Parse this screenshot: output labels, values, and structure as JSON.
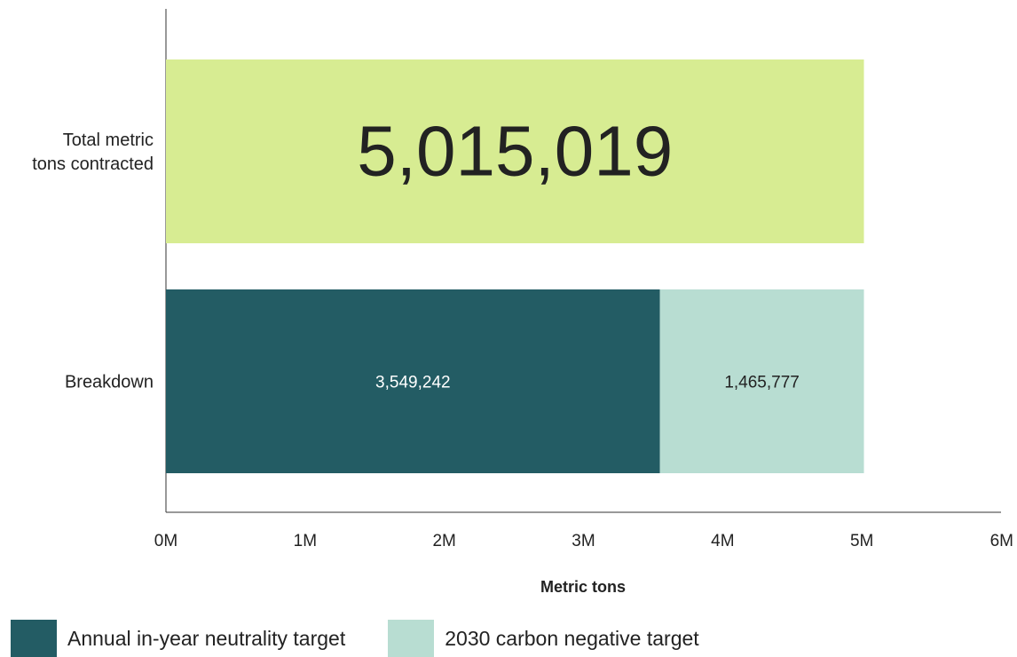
{
  "colors": {
    "total": "#d7ec92",
    "neutrality": "#235c64",
    "negative": "#b8ddd2",
    "axis": "#333333",
    "text": "#222222",
    "label_on_dark": "#ffffff"
  },
  "chart_data": {
    "type": "bar",
    "orientation": "horizontal",
    "stacked": true,
    "title": "",
    "xlabel": "Metric tons",
    "ylabel": "",
    "xlim": [
      0,
      6000000
    ],
    "x_ticks": [
      "0M",
      "1M",
      "2M",
      "3M",
      "4M",
      "5M",
      "6M"
    ],
    "categories": [
      "Total metric tons contracted",
      "Breakdown"
    ],
    "category_label_lines": [
      [
        "Total metric",
        "tons contracted"
      ],
      [
        "Breakdown"
      ]
    ],
    "series": [
      {
        "name": "",
        "key": "total",
        "values": [
          5015019,
          0
        ],
        "labels": [
          "5,015,019",
          ""
        ]
      },
      {
        "name": "Annual in-year neutrality target",
        "key": "neutrality",
        "values": [
          0,
          3549242
        ],
        "labels": [
          "",
          "3,549,242"
        ]
      },
      {
        "name": "2030 carbon negative target",
        "key": "negative",
        "values": [
          0,
          1465777
        ],
        "labels": [
          "",
          "1,465,777"
        ]
      }
    ],
    "legend": {
      "position": "bottom-left",
      "entries": [
        "Annual in-year neutrality target",
        "2030 carbon negative target"
      ]
    },
    "grid": false
  }
}
